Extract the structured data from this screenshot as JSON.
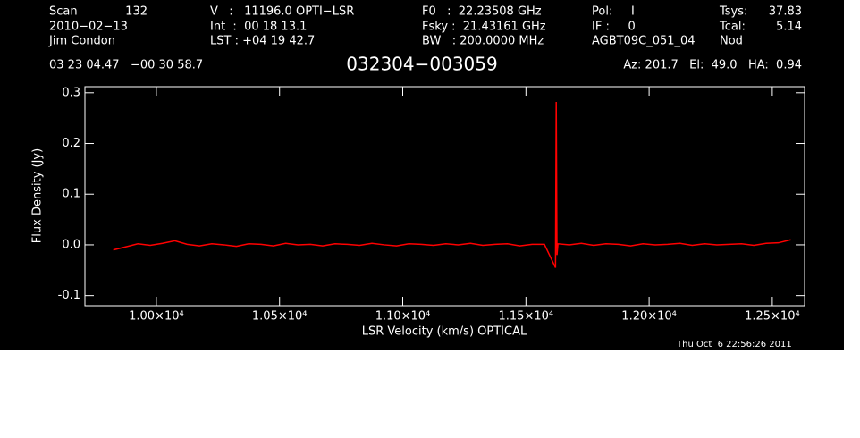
{
  "chart_data": {
    "type": "line",
    "title": "032304−003059",
    "header": [
      "Scan",
      "132",
      "2010−02−13",
      "Jim Condon",
      "V   :   11196.0 OPTI−LSR",
      "Int  :  00 18 13.1",
      "LST : +04 19 42.7",
      "F0   :  22.23508 GHz",
      "Fsky :  21.43161 GHz",
      "BW   : 200.0000 MHz",
      "Pol:     I",
      "IF :     0",
      "AGBT09C_051_04",
      "Tsys:",
      "37.83",
      "Tcal:",
      "5.14",
      "Nod",
      "03 23 04.47   −00 30 58.7",
      "Az: 201.7   El:  49.0   HA:  0.94"
    ],
    "timestamp": "Thu Oct  6 22:56:26 2011",
    "x_label": "LSR Velocity (km/s) OPTICAL",
    "y_label": "Flux Density (Jy)",
    "x": [
      9825,
      9875,
      9925,
      9975,
      10025,
      10075,
      10125,
      10175,
      10225,
      10275,
      10325,
      10375,
      10425,
      10475,
      10525,
      10575,
      10625,
      10675,
      10725,
      10775,
      10825,
      10875,
      10925,
      10975,
      11025,
      11075,
      11125,
      11175,
      11225,
      11275,
      11325,
      11375,
      11425,
      11475,
      11525,
      11575,
      11620,
      11623,
      11626,
      11630,
      11675,
      11725,
      11775,
      11825,
      11875,
      11925,
      11975,
      12025,
      12075,
      12125,
      12175,
      12225,
      12275,
      12325,
      12375,
      12425,
      12475,
      12525,
      12575
    ],
    "series": [
      {
        "color": "#ff0000",
        "values": [
          -0.01,
          -0.004,
          0.002,
          -0.001,
          0.003,
          0.008,
          0.001,
          -0.002,
          0.002,
          0.0,
          -0.003,
          0.002,
          0.001,
          -0.002,
          0.003,
          0.0,
          0.001,
          -0.002,
          0.002,
          0.001,
          -0.001,
          0.003,
          0.0,
          -0.002,
          0.002,
          0.001,
          -0.001,
          0.002,
          0.0,
          0.003,
          -0.001,
          0.001,
          0.002,
          -0.002,
          0.001,
          0.001,
          -0.045,
          0.282,
          -0.02,
          0.002,
          0.0,
          0.003,
          -0.001,
          0.002,
          0.001,
          -0.002,
          0.002,
          0.0,
          0.001,
          0.003,
          -0.001,
          0.002,
          0.0,
          0.001,
          0.002,
          -0.001,
          0.003,
          0.004,
          0.01
        ]
      }
    ],
    "xlim": [
      9710,
      12631
    ],
    "ylim": [
      -0.12,
      0.312
    ],
    "xticks": [
      {
        "value": 10000,
        "label": "1.00×10⁴"
      },
      {
        "value": 10500,
        "label": "1.05×10⁴"
      },
      {
        "value": 11000,
        "label": "1.10×10⁴"
      },
      {
        "value": 11500,
        "label": "1.15×10⁴"
      },
      {
        "value": 12000,
        "label": "1.20×10⁴"
      },
      {
        "value": 12500,
        "label": "1.25×10⁴"
      }
    ],
    "yticks": [
      -0.1,
      {
        "value": 0,
        "label": "0.0"
      },
      0.1,
      0.2,
      0.3
    ]
  }
}
